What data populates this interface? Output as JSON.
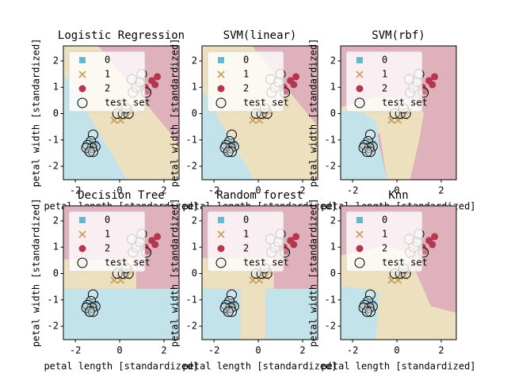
{
  "chart_data": [
    {
      "type": "scatter",
      "title": "Logistic Regression",
      "xlabel": "petal length [standardized]",
      "ylabel": "petal width [standardized]",
      "xlim": [
        -2.54,
        2.68
      ],
      "ylim": [
        -2.51,
        2.57
      ],
      "xticks": [
        -2,
        0,
        2
      ],
      "yticks": [
        -2,
        -1,
        0,
        1,
        2
      ],
      "legend": "upper left",
      "series": [
        {
          "name": "0",
          "color": "#66b8cc",
          "marker": "s",
          "x": [
            -1.3,
            -1.45,
            -1.2,
            -1.35,
            -1.1,
            -1.4
          ],
          "y": [
            -1.3,
            -1.2,
            -1.35,
            -1.05,
            -1.15,
            -1.45
          ]
        },
        {
          "name": "1",
          "color": "#c8a05a",
          "marker": "x",
          "x": [
            -0.25,
            0.05,
            0.35,
            0.45,
            0.5
          ],
          "y": [
            -0.25,
            -0.25,
            -0.1,
            0.1,
            0.25
          ]
        },
        {
          "name": "2",
          "color": "#b5374f",
          "marker": "o",
          "x": [
            1.25,
            1.45,
            1.6,
            1.7,
            1.15
          ],
          "y": [
            0.85,
            1.25,
            1.1,
            1.4,
            1.0
          ]
        },
        {
          "name": "test set",
          "color": "#000000",
          "marker": "open",
          "x": [
            -1.2,
            -1.3,
            -1.45,
            -1.1,
            -1.25,
            -1.5,
            -1.2,
            -1.35,
            -0.1,
            0.15,
            0.4,
            0.3,
            0.6,
            0.75,
            0.9,
            1.0,
            0.55,
            1.2
          ],
          "y": [
            -0.8,
            -1.05,
            -1.2,
            -1.25,
            -1.3,
            -1.3,
            -1.45,
            -1.45,
            0.0,
            0.0,
            0.0,
            0.2,
            0.8,
            1.0,
            1.2,
            1.5,
            1.3,
            0.8
          ]
        }
      ]
    },
    {
      "type": "scatter",
      "title": "SVM(linear)",
      "xlabel": "petal length [standardized]",
      "ylabel": "petal width [standardized]",
      "xlim": [
        -2.54,
        2.68
      ],
      "ylim": [
        -2.51,
        2.57
      ],
      "xticks": [
        -2,
        0,
        2
      ],
      "yticks": [
        -2,
        -1,
        0,
        1,
        2
      ],
      "legend": "upper left",
      "series": [
        {
          "name": "0",
          "color": "#66b8cc",
          "marker": "s",
          "x": [
            -1.3,
            -1.45,
            -1.2,
            -1.35,
            -1.1,
            -1.4
          ],
          "y": [
            -1.3,
            -1.2,
            -1.35,
            -1.05,
            -1.15,
            -1.45
          ]
        },
        {
          "name": "1",
          "color": "#c8a05a",
          "marker": "x",
          "x": [
            -0.25,
            0.05,
            0.35,
            0.45,
            0.5
          ],
          "y": [
            -0.25,
            -0.25,
            -0.1,
            0.1,
            0.25
          ]
        },
        {
          "name": "2",
          "color": "#b5374f",
          "marker": "o",
          "x": [
            1.25,
            1.45,
            1.6,
            1.7,
            1.15
          ],
          "y": [
            0.85,
            1.25,
            1.1,
            1.4,
            1.0
          ]
        },
        {
          "name": "test set",
          "color": "#000000",
          "marker": "open",
          "x": [
            -1.2,
            -1.3,
            -1.45,
            -1.1,
            -1.25,
            -1.5,
            -1.2,
            -1.35,
            -0.1,
            0.15,
            0.4,
            0.3,
            0.6,
            0.75,
            0.9,
            1.0,
            0.55,
            1.2
          ],
          "y": [
            -0.8,
            -1.05,
            -1.2,
            -1.25,
            -1.3,
            -1.3,
            -1.45,
            -1.45,
            0.0,
            0.0,
            0.0,
            0.2,
            0.8,
            1.0,
            1.2,
            1.5,
            1.3,
            0.8
          ]
        }
      ]
    },
    {
      "type": "scatter",
      "title": "SVM(rbf)",
      "xlabel": "petal length [standardized]",
      "ylabel": "petal width [standardized]",
      "xlim": [
        -2.54,
        2.68
      ],
      "ylim": [
        -2.51,
        2.57
      ],
      "xticks": [
        -2,
        0,
        2
      ],
      "yticks": [
        -2,
        -1,
        0,
        1,
        2
      ],
      "legend": "upper left",
      "series": [
        {
          "name": "0",
          "color": "#66b8cc",
          "marker": "s",
          "x": [
            -1.3,
            -1.45,
            -1.2,
            -1.35,
            -1.1,
            -1.4
          ],
          "y": [
            -1.3,
            -1.2,
            -1.35,
            -1.05,
            -1.15,
            -1.45
          ]
        },
        {
          "name": "1",
          "color": "#c8a05a",
          "marker": "x",
          "x": [
            -0.25,
            0.05,
            0.35,
            0.45,
            0.5
          ],
          "y": [
            -0.25,
            -0.25,
            -0.1,
            0.1,
            0.25
          ]
        },
        {
          "name": "2",
          "color": "#b5374f",
          "marker": "o",
          "x": [
            1.25,
            1.45,
            1.6,
            1.7,
            1.15
          ],
          "y": [
            0.85,
            1.25,
            1.1,
            1.4,
            1.0
          ]
        },
        {
          "name": "test set",
          "color": "#000000",
          "marker": "open",
          "x": [
            -1.2,
            -1.3,
            -1.45,
            -1.1,
            -1.25,
            -1.5,
            -1.2,
            -1.35,
            -0.1,
            0.15,
            0.4,
            0.3,
            0.6,
            0.75,
            0.9,
            1.0,
            0.55,
            1.2
          ],
          "y": [
            -0.8,
            -1.05,
            -1.2,
            -1.25,
            -1.3,
            -1.3,
            -1.45,
            -1.45,
            0.0,
            0.0,
            0.0,
            0.2,
            0.8,
            1.0,
            1.2,
            1.5,
            1.3,
            0.8
          ]
        }
      ]
    },
    {
      "type": "scatter",
      "title": "Decision Tree",
      "xlabel": "petal length [standardized]",
      "ylabel": "petal width [standardized]",
      "xlim": [
        -2.54,
        2.68
      ],
      "ylim": [
        -2.51,
        2.57
      ],
      "xticks": [
        -2,
        0,
        2
      ],
      "yticks": [
        -2,
        -1,
        0,
        1,
        2
      ],
      "legend": "upper left",
      "series": [
        {
          "name": "0",
          "color": "#66b8cc",
          "marker": "s",
          "x": [
            -1.3,
            -1.45,
            -1.2,
            -1.35,
            -1.1,
            -1.4
          ],
          "y": [
            -1.3,
            -1.2,
            -1.35,
            -1.05,
            -1.15,
            -1.45
          ]
        },
        {
          "name": "1",
          "color": "#c8a05a",
          "marker": "x",
          "x": [
            -0.25,
            0.05,
            0.35,
            0.45,
            0.5
          ],
          "y": [
            -0.25,
            -0.25,
            -0.1,
            0.1,
            0.25
          ]
        },
        {
          "name": "2",
          "color": "#b5374f",
          "marker": "o",
          "x": [
            1.25,
            1.45,
            1.6,
            1.7,
            1.15
          ],
          "y": [
            0.85,
            1.25,
            1.1,
            1.4,
            1.0
          ]
        },
        {
          "name": "test set",
          "color": "#000000",
          "marker": "open",
          "x": [
            -1.2,
            -1.3,
            -1.45,
            -1.1,
            -1.25,
            -1.5,
            -1.2,
            -1.35,
            -0.1,
            0.15,
            0.4,
            0.3,
            0.6,
            0.75,
            0.9,
            1.0,
            0.55,
            1.2
          ],
          "y": [
            -0.8,
            -1.05,
            -1.2,
            -1.25,
            -1.3,
            -1.3,
            -1.45,
            -1.45,
            0.0,
            0.0,
            0.0,
            0.2,
            0.8,
            1.0,
            1.2,
            1.5,
            1.3,
            0.8
          ]
        }
      ]
    },
    {
      "type": "scatter",
      "title": "Random forest",
      "xlabel": "petal length [standardized]",
      "ylabel": "petal width [standardized]",
      "xlim": [
        -2.54,
        2.68
      ],
      "ylim": [
        -2.51,
        2.57
      ],
      "xticks": [
        -2,
        0,
        2
      ],
      "yticks": [
        -2,
        -1,
        0,
        1,
        2
      ],
      "legend": "upper left",
      "series": [
        {
          "name": "0",
          "color": "#66b8cc",
          "marker": "s",
          "x": [
            -1.3,
            -1.45,
            -1.2,
            -1.35,
            -1.1,
            -1.4
          ],
          "y": [
            -1.3,
            -1.2,
            -1.35,
            -1.05,
            -1.15,
            -1.45
          ]
        },
        {
          "name": "1",
          "color": "#c8a05a",
          "marker": "x",
          "x": [
            -0.25,
            0.05,
            0.35,
            0.45,
            0.5
          ],
          "y": [
            -0.25,
            -0.25,
            -0.1,
            0.1,
            0.25
          ]
        },
        {
          "name": "2",
          "color": "#b5374f",
          "marker": "o",
          "x": [
            1.25,
            1.45,
            1.6,
            1.7,
            1.15
          ],
          "y": [
            0.85,
            1.25,
            1.1,
            1.4,
            1.0
          ]
        },
        {
          "name": "test set",
          "color": "#000000",
          "marker": "open",
          "x": [
            -1.2,
            -1.3,
            -1.45,
            -1.1,
            -1.25,
            -1.5,
            -1.2,
            -1.35,
            -0.1,
            0.15,
            0.4,
            0.3,
            0.6,
            0.75,
            0.9,
            1.0,
            0.55,
            1.2
          ],
          "y": [
            -0.8,
            -1.05,
            -1.2,
            -1.25,
            -1.3,
            -1.3,
            -1.45,
            -1.45,
            0.0,
            0.0,
            0.0,
            0.2,
            0.8,
            1.0,
            1.2,
            1.5,
            1.3,
            0.8
          ]
        }
      ]
    },
    {
      "type": "scatter",
      "title": "Knn",
      "xlabel": "petal length [standardized]",
      "ylabel": "petal width [standardized]",
      "xlim": [
        -2.54,
        2.68
      ],
      "ylim": [
        -2.51,
        2.57
      ],
      "xticks": [
        -2,
        0,
        2
      ],
      "yticks": [
        -2,
        -1,
        0,
        1,
        2
      ],
      "legend": "upper left",
      "series": [
        {
          "name": "0",
          "color": "#66b8cc",
          "marker": "s",
          "x": [
            -1.3,
            -1.45,
            -1.2,
            -1.35,
            -1.1,
            -1.4
          ],
          "y": [
            -1.3,
            -1.2,
            -1.35,
            -1.05,
            -1.15,
            -1.45
          ]
        },
        {
          "name": "1",
          "color": "#c8a05a",
          "marker": "x",
          "x": [
            -0.25,
            0.05,
            0.35,
            0.45,
            0.5
          ],
          "y": [
            -0.25,
            -0.25,
            -0.1,
            0.1,
            0.25
          ]
        },
        {
          "name": "2",
          "color": "#b5374f",
          "marker": "o",
          "x": [
            1.25,
            1.45,
            1.6,
            1.7,
            1.15
          ],
          "y": [
            0.85,
            1.25,
            1.1,
            1.4,
            1.0
          ]
        },
        {
          "name": "test set",
          "color": "#000000",
          "marker": "open",
          "x": [
            -1.2,
            -1.3,
            -1.45,
            -1.1,
            -1.25,
            -1.5,
            -1.2,
            -1.35,
            -0.1,
            0.15,
            0.4,
            0.3,
            0.6,
            0.75,
            0.9,
            1.0,
            0.55,
            1.2
          ],
          "y": [
            -0.8,
            -1.05,
            -1.2,
            -1.25,
            -1.3,
            -1.3,
            -1.45,
            -1.45,
            0.0,
            0.0,
            0.0,
            0.2,
            0.8,
            1.0,
            1.2,
            1.5,
            1.3,
            0.8
          ]
        }
      ]
    }
  ]
}
